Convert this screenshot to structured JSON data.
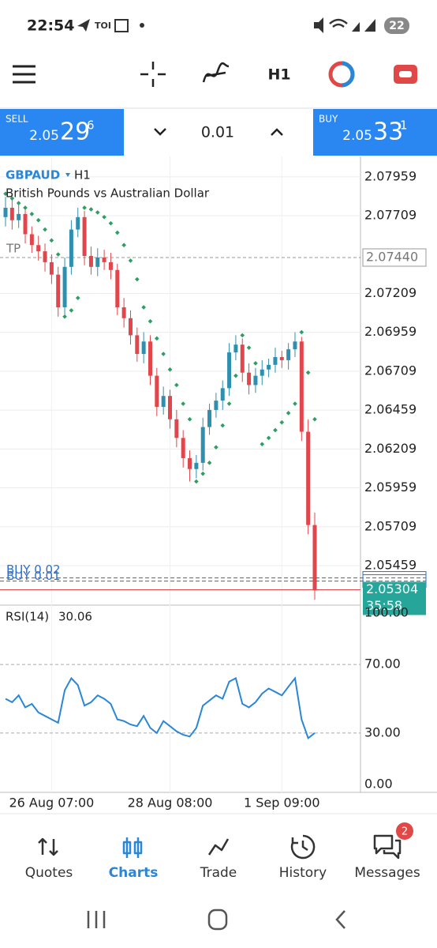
{
  "status_bar": {
    "time": "22:54",
    "app": "TOI",
    "battery": "22"
  },
  "toolbar": {
    "timeframe": "H1"
  },
  "trade_panel": {
    "sell": {
      "label": "SELL",
      "price_main": "2.05",
      "price_big": "29",
      "price_sup": "6"
    },
    "volume": "0.01",
    "buy": {
      "label": "BUY",
      "price_main": "2.05",
      "price_big": "33",
      "price_sup": "1"
    }
  },
  "chart_data": [
    {
      "type": "candlestick",
      "symbol": "GBPAUD",
      "timeframe": "H1",
      "title": "British Pounds vs Australian Dollar",
      "categories": [
        null,
        null,
        null,
        null,
        null,
        null,
        null,
        "26 Aug 07:00",
        null,
        null,
        null,
        null,
        null,
        null,
        null,
        null,
        null,
        null,
        null,
        null,
        null,
        null,
        null,
        null,
        null,
        "28 Aug 08:00",
        null,
        null,
        null,
        null,
        null,
        null,
        null,
        null,
        null,
        null,
        null,
        null,
        null,
        null,
        null,
        null,
        "1 Sep 09:00",
        null,
        null,
        null,
        null,
        null
      ],
      "open": [
        2.077,
        2.0776,
        2.0768,
        2.0772,
        2.0759,
        2.0752,
        2.0748,
        2.0741,
        2.0733,
        2.0712,
        2.0738,
        2.0762,
        2.077,
        2.0745,
        2.0738,
        2.0744,
        2.0741,
        2.0736,
        2.0712,
        2.0705,
        2.0694,
        2.0682,
        2.069,
        2.0668,
        2.0648,
        2.0655,
        2.064,
        2.0628,
        2.0615,
        2.0608,
        2.0612,
        2.0635,
        2.0646,
        2.0652,
        2.066,
        2.0683,
        2.0688,
        2.067,
        2.0662,
        2.0668,
        2.0672,
        2.0675,
        2.068,
        2.0678,
        2.0685,
        2.069,
        2.0632,
        2.0572
      ],
      "high": [
        2.0783,
        2.0781,
        2.0779,
        2.0777,
        2.0764,
        2.0758,
        2.0753,
        2.0746,
        2.0738,
        2.0744,
        2.0768,
        2.0776,
        2.0774,
        2.0751,
        2.075,
        2.0749,
        2.0747,
        2.074,
        2.0718,
        2.071,
        2.0699,
        2.0696,
        2.0694,
        2.0673,
        2.0661,
        2.0659,
        2.0646,
        2.0633,
        2.062,
        2.0617,
        2.0641,
        2.065,
        2.0657,
        2.0665,
        2.0689,
        2.0694,
        2.0692,
        2.0676,
        2.0673,
        2.0678,
        2.0679,
        2.0686,
        2.0684,
        2.0689,
        2.0696,
        2.0693,
        2.064,
        2.058
      ],
      "low": [
        2.0764,
        2.0762,
        2.0763,
        2.0753,
        2.0747,
        2.0742,
        2.0735,
        2.0727,
        2.0706,
        2.0707,
        2.0733,
        2.0757,
        2.0739,
        2.0733,
        2.0732,
        2.0736,
        2.073,
        2.0707,
        2.0699,
        2.0688,
        2.0677,
        2.0676,
        2.0662,
        2.0642,
        2.0643,
        2.0634,
        2.0622,
        2.0609,
        2.06,
        2.0602,
        2.0607,
        2.063,
        2.0641,
        2.0646,
        2.0655,
        2.0678,
        2.0664,
        2.0656,
        2.0657,
        2.0662,
        2.0667,
        2.067,
        2.0673,
        2.0672,
        2.068,
        2.0626,
        2.0566,
        2.0524
      ],
      "close": [
        2.0776,
        2.0768,
        2.0772,
        2.0759,
        2.0752,
        2.0748,
        2.0741,
        2.0733,
        2.0712,
        2.0738,
        2.0762,
        2.077,
        2.0745,
        2.0738,
        2.0744,
        2.0741,
        2.0736,
        2.0712,
        2.0705,
        2.0694,
        2.0682,
        2.069,
        2.0668,
        2.0648,
        2.0655,
        2.064,
        2.0628,
        2.0615,
        2.0608,
        2.0612,
        2.0635,
        2.0646,
        2.0652,
        2.066,
        2.0683,
        2.0688,
        2.067,
        2.0662,
        2.0668,
        2.0672,
        2.0675,
        2.068,
        2.0678,
        2.0685,
        2.069,
        2.0632,
        2.0572,
        2.053
      ],
      "up_color": "#2f8fae",
      "down_color": "#e0464b",
      "psar": {
        "color": "#2e9e62",
        "values": [
          2.0785,
          2.0782,
          2.0779,
          2.0776,
          2.0772,
          2.0768,
          2.0762,
          2.0755,
          2.0746,
          2.0706,
          2.071,
          2.0718,
          2.0776,
          2.0775,
          2.0773,
          2.077,
          2.0766,
          2.076,
          2.0752,
          2.0742,
          2.073,
          2.0712,
          2.0703,
          2.0692,
          2.0682,
          2.0672,
          2.0662,
          2.065,
          2.064,
          2.06,
          2.0605,
          2.0612,
          2.0622,
          2.0636,
          2.065,
          2.0668,
          2.0694,
          2.0686,
          2.0676,
          2.0624,
          2.0628,
          2.0633,
          2.0638,
          2.0644,
          2.065,
          2.0696,
          2.067,
          2.064
        ]
      },
      "ylim": [
        2.0521,
        2.0808
      ],
      "yticks": [
        2.07959,
        2.07709,
        2.07209,
        2.06959,
        2.06709,
        2.06459,
        2.06209,
        2.05959,
        2.05709,
        2.05459
      ],
      "grid": true,
      "tp": {
        "label": "TP",
        "price": {
          "value": 2.0744,
          "label": "2.07440"
        }
      },
      "positions": [
        {
          "label": "BUY 0.02",
          "price": 2.0538
        },
        {
          "label": "BUY 0.01",
          "price": 2.0536
        }
      ],
      "last_price": 2.05304,
      "timer": "35:58",
      "price_color": "#26a69a"
    },
    {
      "type": "line",
      "label": "RSI(14)",
      "current": 30.06,
      "color": "#2a86d6",
      "values": [
        50,
        48,
        52,
        45,
        47,
        42,
        40,
        38,
        36,
        55,
        62,
        58,
        46,
        48,
        52,
        50,
        47,
        38,
        37,
        35,
        34,
        40,
        33,
        30,
        37,
        34,
        31,
        29,
        28,
        33,
        46,
        49,
        52,
        50,
        60,
        62,
        47,
        45,
        48,
        53,
        56,
        54,
        52,
        57,
        62,
        38,
        27,
        30.06
      ],
      "ylim": [
        -4.6,
        103.7
      ],
      "yticks": [
        {
          "value": 100,
          "label": "100.00"
        },
        {
          "value": 70,
          "label": "70.00"
        },
        {
          "value": 30,
          "label": "30.00"
        },
        {
          "value": 0,
          "label": "0.00"
        }
      ],
      "dashed_levels": [
        70,
        30
      ]
    }
  ],
  "nav": {
    "items": [
      "Quotes",
      "Charts",
      "Trade",
      "History",
      "Messages"
    ],
    "active": 1,
    "badge": "2"
  }
}
